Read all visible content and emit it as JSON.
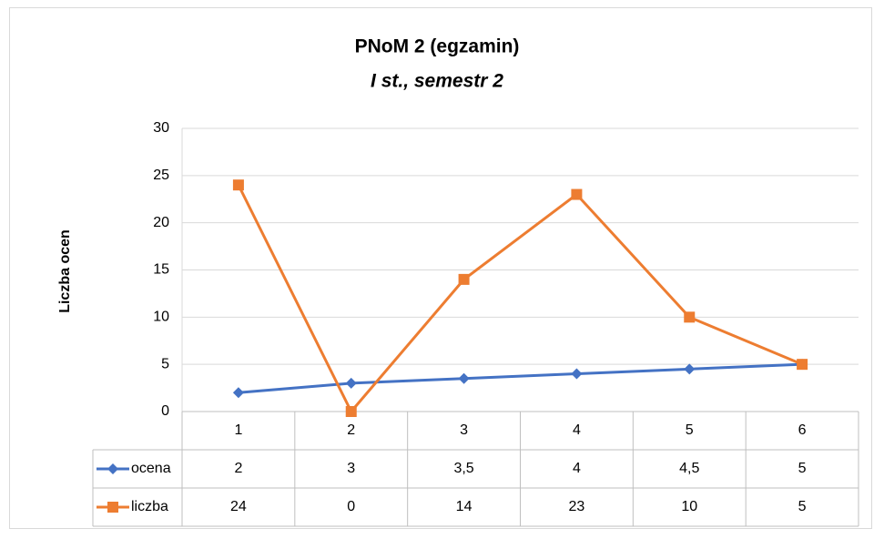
{
  "chart_data": {
    "type": "line",
    "title": "PNoM 2 (egzamin)",
    "subtitle": "I st., semestr 2",
    "y_label": "Liczba ocen",
    "categories": [
      "1",
      "2",
      "3",
      "4",
      "5",
      "6"
    ],
    "series": [
      {
        "name": "ocena",
        "color": "#4472c4",
        "marker": "diamond",
        "values": [
          2,
          3,
          3.5,
          4,
          4.5,
          5
        ],
        "value_labels": [
          "2",
          "3",
          "3,5",
          "4",
          "4,5",
          "5"
        ]
      },
      {
        "name": "liczba",
        "color": "#ed7d31",
        "marker": "square",
        "values": [
          24,
          0,
          14,
          23,
          10,
          5
        ]
      }
    ],
    "ylim": [
      0,
      30
    ],
    "yticks": [
      0,
      5,
      10,
      15,
      20,
      25,
      30
    ],
    "grid": true,
    "data_table": true
  }
}
